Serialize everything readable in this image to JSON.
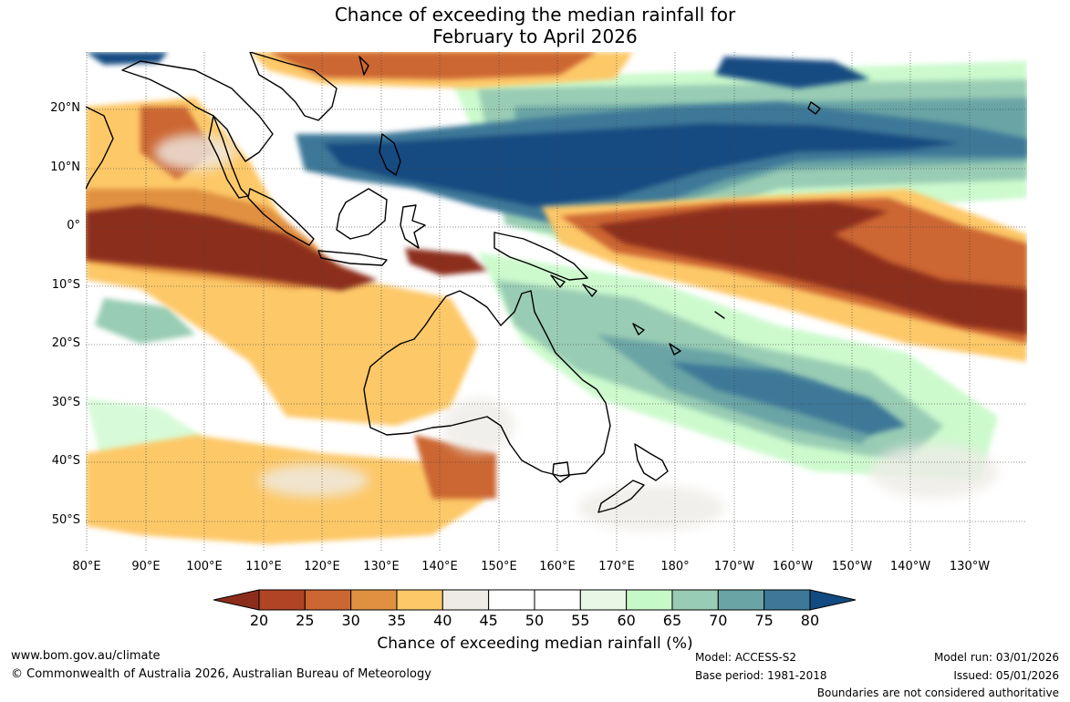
{
  "title": {
    "line1": "Chance of exceeding the median rainfall for",
    "line2": "February to April 2026"
  },
  "map": {
    "lat_labels": [
      "20°N",
      "10°N",
      "0°",
      "10°S",
      "20°S",
      "30°S",
      "40°S",
      "50°S"
    ],
    "lon_labels": [
      "80°E",
      "90°E",
      "100°E",
      "110°E",
      "120°E",
      "130°E",
      "140°E",
      "150°E",
      "160°E",
      "170°E",
      "180°",
      "170°W",
      "160°W",
      "150°W",
      "140°W",
      "130°W"
    ]
  },
  "colorbar": {
    "ticks": [
      "20",
      "25",
      "30",
      "35",
      "40",
      "45",
      "50",
      "55",
      "60",
      "65",
      "70",
      "75",
      "80"
    ],
    "colors": [
      "#8c2d1c",
      "#b04425",
      "#cc6633",
      "#e09040",
      "#fdc867",
      "#eeebe6",
      "#ffffff",
      "#ffffff",
      "#e8f7e6",
      "#c6f9c8",
      "#99ccb4",
      "#6ba4a5",
      "#3d7898",
      "#124b82",
      "#8c2d1c",
      "#124b82"
    ],
    "label": "Chance of exceeding median rainfall (%)"
  },
  "footer": {
    "website": "www.bom.gov.au/climate",
    "copyright": "© Commonwealth of Australia 2026, Australian Bureau of Meteorology",
    "model": "Model: ACCESS-S2",
    "base_period": "Base period: 1981-2018",
    "model_run": "Model run: 03/01/2026",
    "issued": "Issued: 05/01/2026",
    "disclaimer": "Boundaries are not considered authoritative"
  }
}
